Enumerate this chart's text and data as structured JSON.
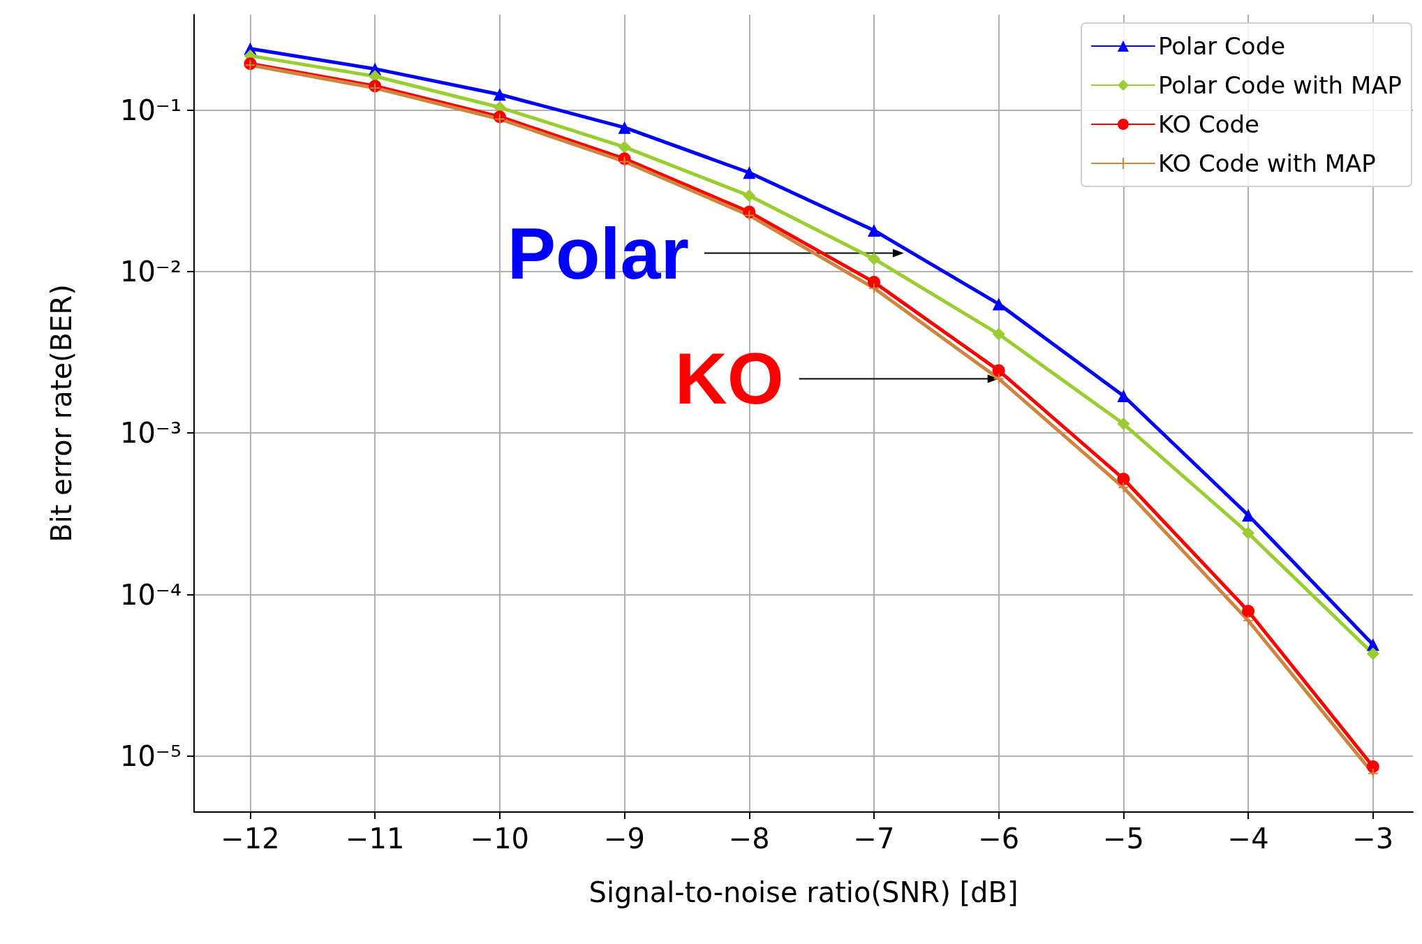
{
  "chart_data": {
    "type": "line",
    "xlabel": "Signal-to-noise ratio(SNR) [dB]",
    "ylabel": "Bit error rate(BER)",
    "x": [
      -12,
      -11,
      -10,
      -9,
      -8,
      -7,
      -6,
      -5,
      -4,
      -3
    ],
    "series": [
      {
        "name": "Polar Code",
        "color": "#0000ff",
        "marker": "triangle",
        "values": [
          0.24,
          0.18,
          0.125,
          0.078,
          0.041,
          0.018,
          0.0063,
          0.0017,
          0.00031,
          4.9e-05
        ]
      },
      {
        "name": "Polar Code with MAP",
        "color": "#9acd32",
        "marker": "diamond",
        "values": [
          0.217,
          0.162,
          0.104,
          0.059,
          0.0295,
          0.012,
          0.0041,
          0.00114,
          0.00024,
          4.3e-05
        ]
      },
      {
        "name": "KO Code",
        "color": "#ff0000",
        "marker": "circle",
        "values": [
          0.194,
          0.141,
          0.091,
          0.05,
          0.0234,
          0.0086,
          0.00244,
          0.00052,
          7.9e-05,
          8.6e-06
        ]
      },
      {
        "name": "KO Code with MAP",
        "color": "#cd853f",
        "marker": "cross",
        "values": [
          0.19,
          0.137,
          0.088,
          0.048,
          0.0223,
          0.0079,
          0.00217,
          0.00046,
          6.9e-05,
          7.8e-06
        ]
      }
    ],
    "log": "y",
    "grid": true,
    "legend": "top right",
    "xlim": [
      -12.45,
      -2.68
    ],
    "ylim": [
      4.5e-06,
      0.39
    ],
    "xticks": [
      {
        "value": -12,
        "label": "−12"
      },
      {
        "value": -11,
        "label": "−11"
      },
      {
        "value": -10,
        "label": "−10"
      },
      {
        "value": -9,
        "label": "−9"
      },
      {
        "value": -8,
        "label": "−8"
      },
      {
        "value": -7,
        "label": "−7"
      },
      {
        "value": -6,
        "label": "−6"
      },
      {
        "value": -5,
        "label": "−5"
      },
      {
        "value": -4,
        "label": "−4"
      },
      {
        "value": -3,
        "label": "−3"
      }
    ],
    "yticks": [
      {
        "value": 1e-05,
        "label": "10⁻⁵"
      },
      {
        "value": 0.0001,
        "label": "10⁻⁴"
      },
      {
        "value": 0.001,
        "label": "10⁻³"
      },
      {
        "value": 0.01,
        "label": "10⁻²"
      },
      {
        "value": 0.1,
        "label": "10⁻¹"
      }
    ],
    "annotations": [
      {
        "text": "Polar",
        "x": -6.76,
        "y": 0.013
      },
      {
        "text": "KO",
        "x": -6,
        "y": 0.00217
      }
    ]
  }
}
